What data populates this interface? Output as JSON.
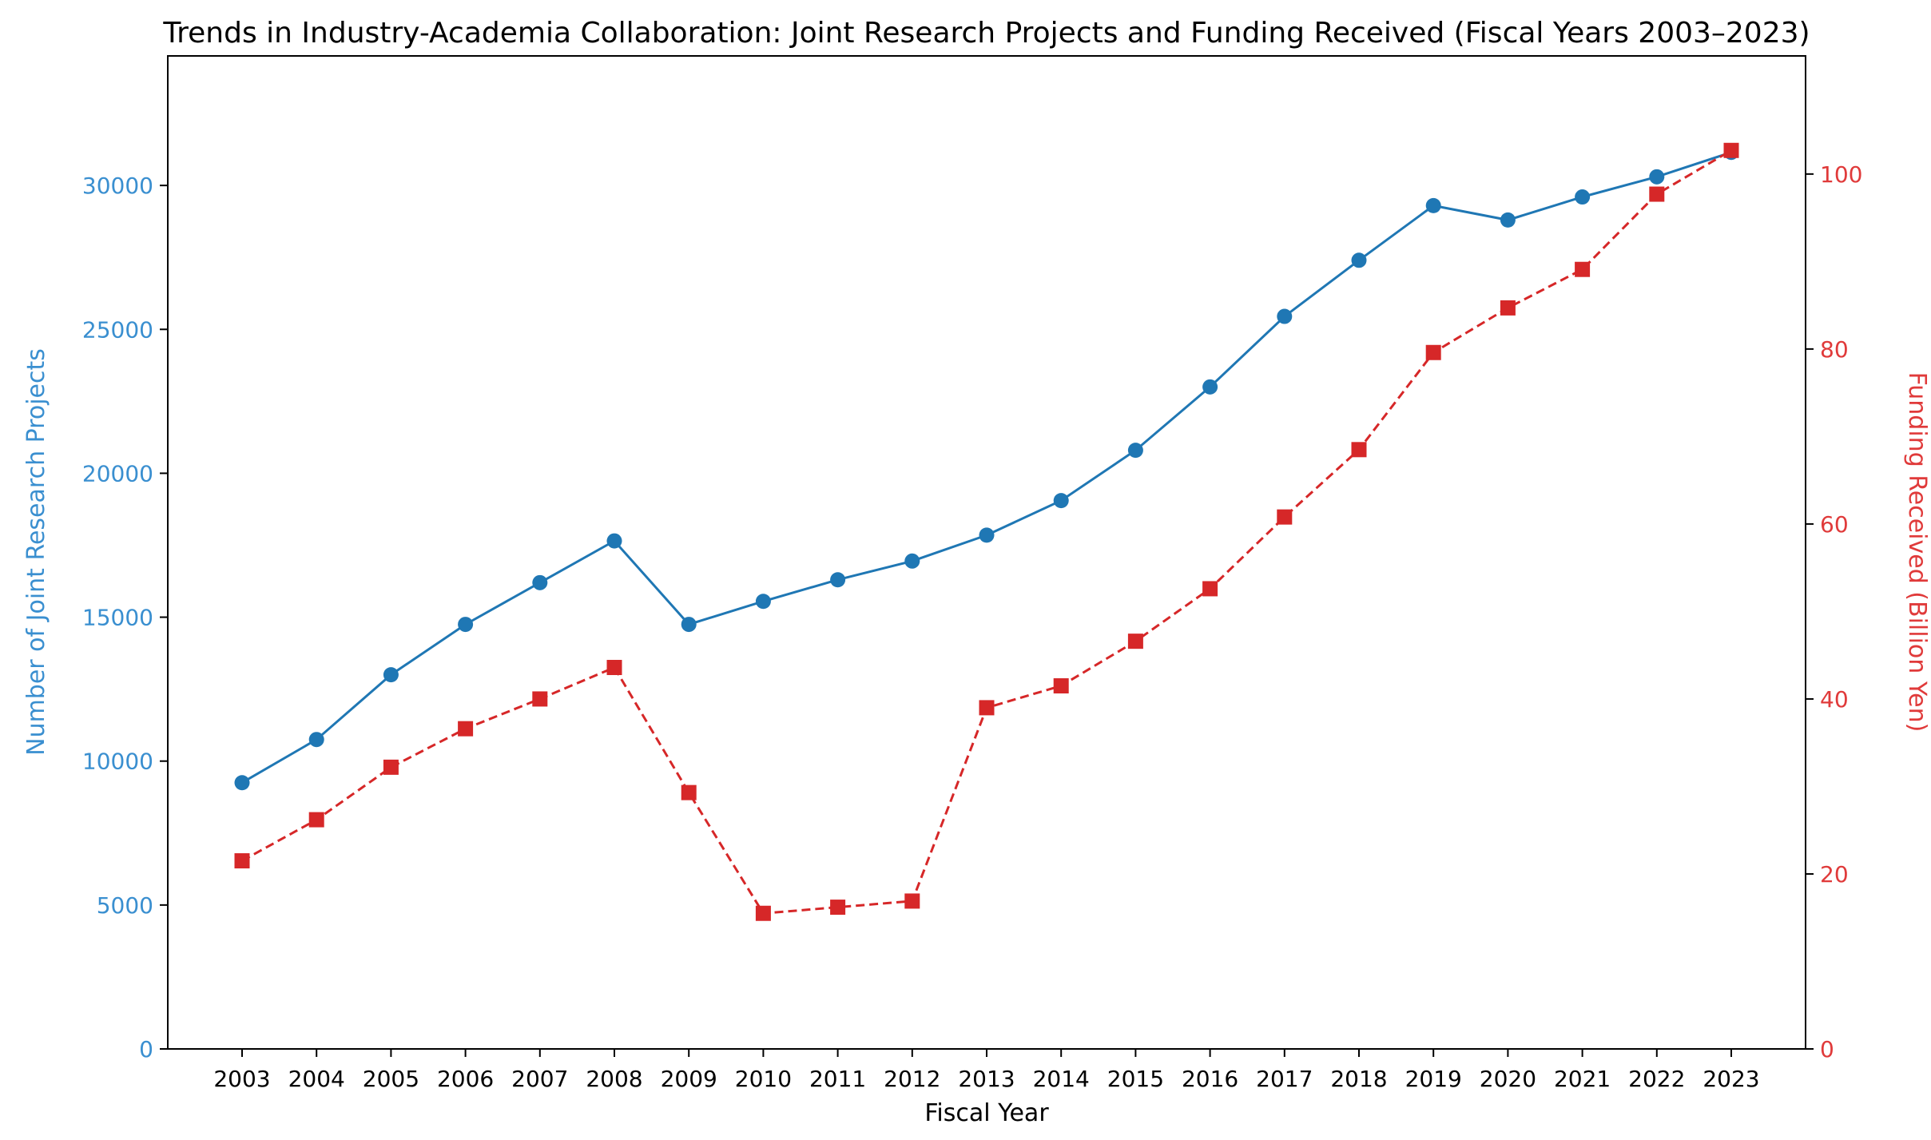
{
  "chart_data": {
    "type": "line",
    "title": "Trends in Industry-Academia Collaboration: Joint Research Projects and Funding Received (Fiscal Years 2003–2023)",
    "xlabel": "Fiscal Year",
    "ylabel_left": "Number of Joint Research Projects",
    "ylabel_right": "Funding Received (Billion Yen)",
    "categories": [
      "2003",
      "2004",
      "2005",
      "2006",
      "2007",
      "2008",
      "2009",
      "2010",
      "2011",
      "2012",
      "2013",
      "2014",
      "2015",
      "2016",
      "2017",
      "2018",
      "2019",
      "2020",
      "2021",
      "2022",
      "2023"
    ],
    "ylim_left": [
      0,
      34500
    ],
    "ylim_right": [
      0,
      113.5
    ],
    "yticks_left": [
      0,
      5000,
      10000,
      15000,
      20000,
      25000,
      30000
    ],
    "yticks_right": [
      0,
      20,
      40,
      60,
      80,
      100
    ],
    "grid": false,
    "legend": "none",
    "colors": {
      "projects": "#1f77b4",
      "funding": "#d62728",
      "left_axis_text": "#3a8fd0",
      "right_axis_text": "#e03a3a"
    },
    "series": [
      {
        "axis": "left",
        "marker": "circle",
        "line": "solid",
        "values": [
          9250,
          10750,
          13000,
          14750,
          16200,
          17650,
          14750,
          15550,
          16300,
          16950,
          17850,
          19050,
          20800,
          23000,
          25450,
          27400,
          29300,
          28800,
          29600,
          30300,
          31150
        ]
      },
      {
        "axis": "right",
        "marker": "square",
        "line": "dashed",
        "values": [
          21.5,
          26.2,
          32.2,
          36.6,
          40.0,
          43.6,
          29.3,
          15.5,
          16.2,
          16.9,
          39.0,
          41.5,
          46.6,
          52.6,
          60.8,
          68.5,
          79.6,
          84.7,
          89.1,
          97.7,
          102.7
        ]
      }
    ]
  }
}
